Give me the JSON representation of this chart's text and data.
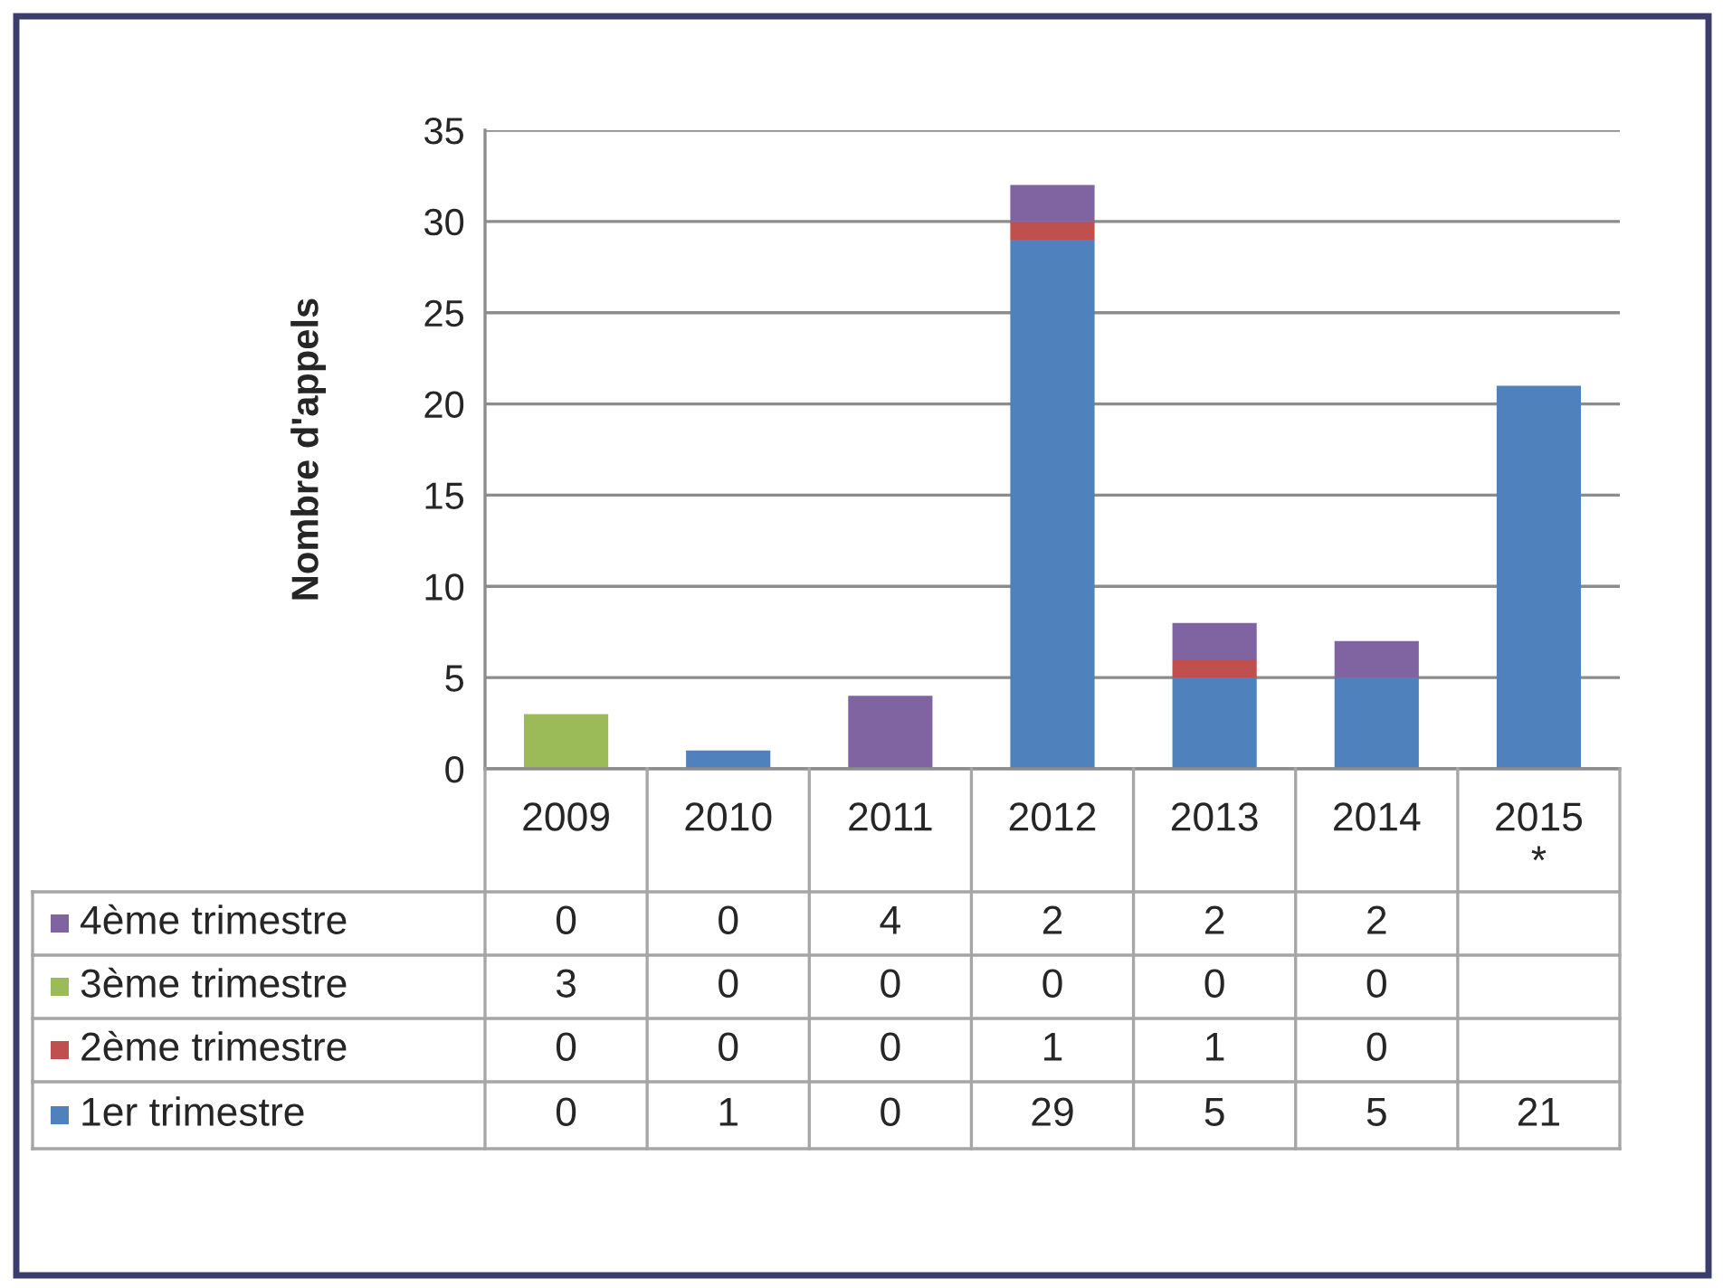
{
  "chart_data": {
    "type": "bar",
    "stacked": true,
    "ylabel": "Nombre d'appels",
    "categories": [
      "2009",
      "2010",
      "2011",
      "2012",
      "2013",
      "2014",
      "2015\n*"
    ],
    "series": [
      {
        "name": "1er trimestre",
        "color": "#4f81bd",
        "values": [
          0,
          1,
          0,
          29,
          5,
          5,
          21
        ]
      },
      {
        "name": "2ème trimestre",
        "color": "#c0504d",
        "values": [
          0,
          0,
          0,
          1,
          1,
          0,
          null
        ]
      },
      {
        "name": "3ème trimestre",
        "color": "#9bbb59",
        "values": [
          3,
          0,
          0,
          0,
          0,
          0,
          null
        ]
      },
      {
        "name": "4ème trimestre",
        "color": "#8064a2",
        "values": [
          0,
          0,
          4,
          2,
          2,
          2,
          null
        ]
      }
    ],
    "ylim": [
      0,
      35
    ],
    "yticks": [
      0,
      5,
      10,
      15,
      20,
      25,
      30,
      35
    ],
    "grid": "y",
    "legend": "bottom",
    "data_labels": true
  }
}
